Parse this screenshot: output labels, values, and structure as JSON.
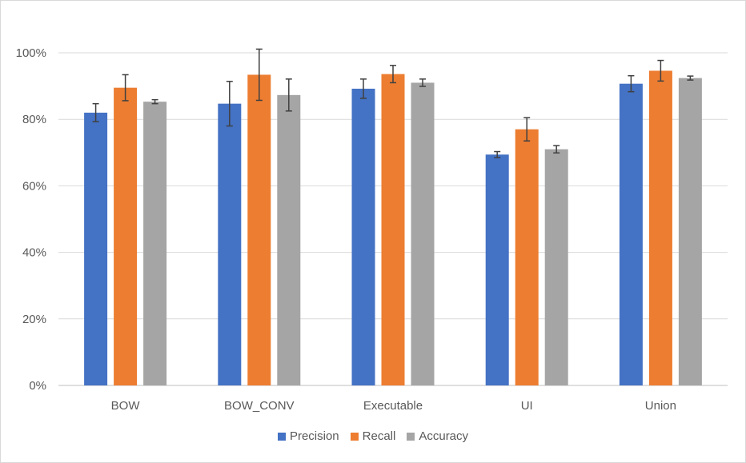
{
  "chart_data": {
    "type": "bar",
    "title": "",
    "xlabel": "",
    "ylabel": "",
    "categories": [
      "BOW",
      "BOW_CONV",
      "Executable",
      "UI",
      "Union"
    ],
    "ylim": [
      0,
      100
    ],
    "yticks": [
      "0%",
      "20%",
      "40%",
      "60%",
      "80%",
      "100%"
    ],
    "grid": true,
    "legend_position": "bottom",
    "series": [
      {
        "name": "Precision",
        "color": "#4472C4",
        "values": [
          82,
          84.7,
          89.2,
          69.4,
          90.7
        ],
        "errors": [
          2.7,
          6.7,
          2.9,
          0.9,
          2.4
        ]
      },
      {
        "name": "Recall",
        "color": "#ED7D31",
        "values": [
          89.5,
          93.4,
          93.6,
          77,
          94.6
        ],
        "errors": [
          3.9,
          7.7,
          2.6,
          3.5,
          3.1
        ]
      },
      {
        "name": "Accuracy",
        "color": "#A5A5A5",
        "values": [
          85.3,
          87.3,
          91,
          71,
          92.4
        ],
        "errors": [
          0.6,
          4.8,
          1.1,
          1.1,
          0.6
        ]
      }
    ]
  }
}
